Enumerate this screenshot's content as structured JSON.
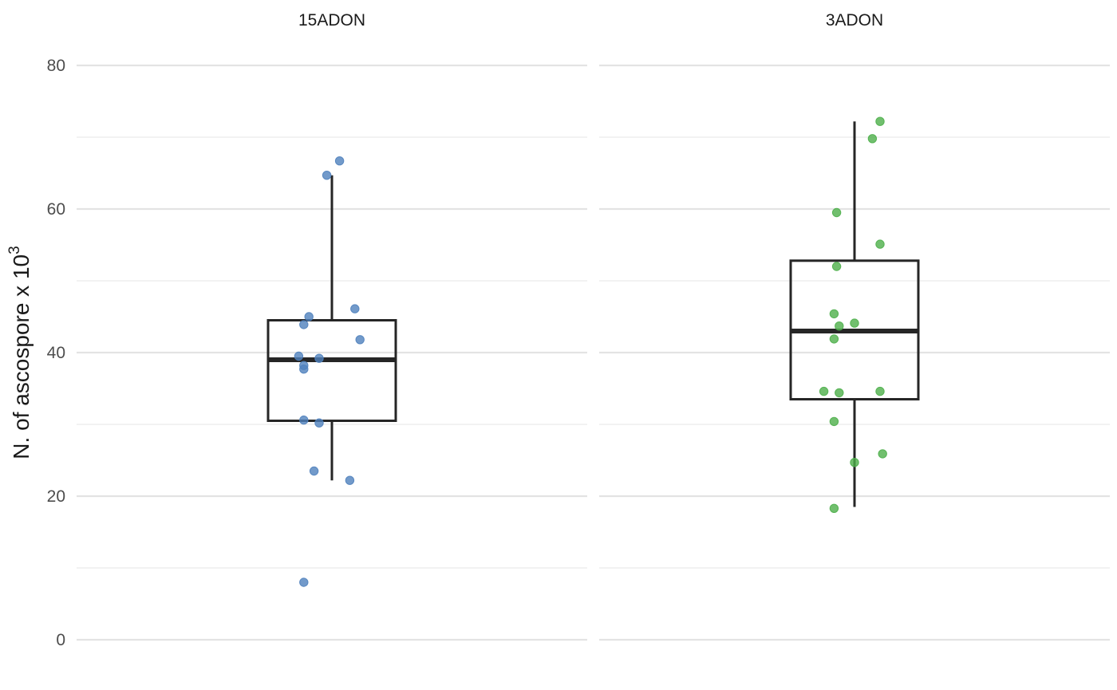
{
  "chart_data": {
    "type": "box",
    "ylabel": {
      "text": "N. of ascospore x 10",
      "superscript": "3"
    },
    "ylim": [
      0,
      80
    ],
    "yticks": [
      0,
      20,
      40,
      60,
      80
    ],
    "minor_yticks": [
      10,
      30,
      50,
      70
    ],
    "grid": true,
    "facets": [
      {
        "name": "15ADON",
        "color": "#4f81bd",
        "box": {
          "q1": 30.5,
          "median": 39.0,
          "q3": 44.5,
          "whisker_low": 22.2,
          "whisker_high": 64.7
        },
        "points": [
          {
            "x": -0.11,
            "y": 8.0
          },
          {
            "x": -0.07,
            "y": 23.5
          },
          {
            "x": 0.07,
            "y": 22.2
          },
          {
            "x": -0.11,
            "y": 30.6
          },
          {
            "x": -0.05,
            "y": 30.2
          },
          {
            "x": -0.11,
            "y": 37.7
          },
          {
            "x": -0.11,
            "y": 38.2
          },
          {
            "x": -0.13,
            "y": 39.5
          },
          {
            "x": -0.05,
            "y": 39.2
          },
          {
            "x": -0.11,
            "y": 43.9
          },
          {
            "x": -0.09,
            "y": 45.0
          },
          {
            "x": 0.09,
            "y": 46.1
          },
          {
            "x": 0.11,
            "y": 41.8
          },
          {
            "x": -0.02,
            "y": 64.7
          },
          {
            "x": 0.03,
            "y": 66.7
          }
        ]
      },
      {
        "name": "3ADON",
        "color": "#4daf4a",
        "box": {
          "q1": 33.5,
          "median": 43.0,
          "q3": 52.8,
          "whisker_low": 18.5,
          "whisker_high": 72.2
        },
        "points": [
          {
            "x": -0.08,
            "y": 18.3
          },
          {
            "x": 0.0,
            "y": 24.7
          },
          {
            "x": 0.11,
            "y": 25.9
          },
          {
            "x": -0.08,
            "y": 30.4
          },
          {
            "x": -0.12,
            "y": 34.6
          },
          {
            "x": -0.06,
            "y": 34.4
          },
          {
            "x": 0.1,
            "y": 34.6
          },
          {
            "x": -0.08,
            "y": 41.9
          },
          {
            "x": -0.06,
            "y": 43.7
          },
          {
            "x": 0.0,
            "y": 44.1
          },
          {
            "x": -0.08,
            "y": 45.4
          },
          {
            "x": -0.07,
            "y": 52.0
          },
          {
            "x": 0.1,
            "y": 55.1
          },
          {
            "x": -0.07,
            "y": 59.5
          },
          {
            "x": 0.07,
            "y": 69.8
          },
          {
            "x": 0.1,
            "y": 72.2
          }
        ]
      }
    ]
  }
}
